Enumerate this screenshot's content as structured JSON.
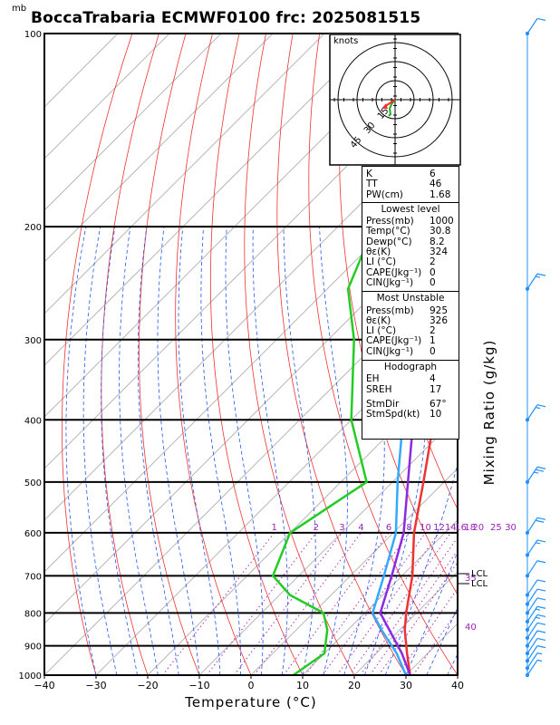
{
  "header": {
    "unit_label": "mb",
    "title": "BoccaTrabaria ECMWF0100 frc: 2025081515"
  },
  "chart_data": {
    "type": "skew-t",
    "xlabel": "Temperature (°C)",
    "ylabel_right": "Mixing Ratio (g/kg)",
    "x_ticks": [
      "−40",
      "−30",
      "−20",
      "−10",
      "0",
      "10",
      "20",
      "30",
      "40"
    ],
    "x_range": [
      -40,
      40
    ],
    "pressure_levels": [
      1000,
      900,
      800,
      700,
      600,
      500,
      400,
      300,
      200,
      100
    ],
    "pressure_labels": [
      "1000",
      "900",
      "800",
      "700",
      "600",
      "500",
      "400",
      "300",
      "200",
      "100"
    ],
    "mixing_ratio_labels": [
      "1",
      "2",
      "3",
      "4",
      "6",
      "8",
      "10",
      "12",
      "14",
      "16",
      "18",
      "20",
      "25",
      "30"
    ],
    "mixing_ratio_extra": [
      "35",
      "40"
    ],
    "lcl_labels": [
      "LCL",
      "LCL"
    ],
    "series": [
      {
        "name": "temperature",
        "color": "#ee3333",
        "points": [
          [
            1000,
            30.8
          ],
          [
            925,
            26
          ],
          [
            850,
            21
          ],
          [
            800,
            18
          ],
          [
            700,
            12
          ],
          [
            600,
            4
          ],
          [
            500,
            -4
          ],
          [
            400,
            -14
          ],
          [
            300,
            -27
          ],
          [
            250,
            -38
          ],
          [
            200,
            -43
          ],
          [
            100,
            -55
          ]
        ]
      },
      {
        "name": "dewpoint",
        "color": "#22cc22",
        "points": [
          [
            1000,
            8.2
          ],
          [
            925,
            10
          ],
          [
            850,
            6
          ],
          [
            800,
            2
          ],
          [
            750,
            -8
          ],
          [
            700,
            -15
          ],
          [
            600,
            -20
          ],
          [
            500,
            -15
          ],
          [
            400,
            -30
          ],
          [
            300,
            -45
          ],
          [
            250,
            -56
          ],
          [
            200,
            -63
          ],
          [
            100,
            -82
          ]
        ]
      },
      {
        "name": "parcel",
        "color": "#8a2be2",
        "points": [
          [
            1000,
            30.8
          ],
          [
            925,
            25
          ],
          [
            850,
            18
          ],
          [
            800,
            13
          ],
          [
            700,
            8
          ],
          [
            600,
            2
          ],
          [
            500,
            -7
          ],
          [
            400,
            -18
          ],
          [
            300,
            -34
          ],
          [
            200,
            -57
          ],
          [
            150,
            -70
          ],
          [
            120,
            -80
          ]
        ]
      },
      {
        "name": "parcel_virtual",
        "color": "#33aaff",
        "points": [
          [
            1000,
            30
          ],
          [
            925,
            24
          ],
          [
            850,
            16.5
          ],
          [
            800,
            11.5
          ],
          [
            700,
            6.5
          ],
          [
            600,
            0.5
          ],
          [
            500,
            -9
          ],
          [
            400,
            -20
          ],
          [
            300,
            -36
          ],
          [
            200,
            -59
          ],
          [
            150,
            -72
          ],
          [
            120,
            -82
          ]
        ]
      }
    ],
    "wind_barbs": [
      {
        "p": 1000,
        "spd": 5
      },
      {
        "p": 975,
        "spd": 5
      },
      {
        "p": 950,
        "spd": 10
      },
      {
        "p": 925,
        "spd": 10
      },
      {
        "p": 900,
        "spd": 10
      },
      {
        "p": 875,
        "spd": 10
      },
      {
        "p": 850,
        "spd": 15
      },
      {
        "p": 825,
        "spd": 15
      },
      {
        "p": 800,
        "spd": 10
      },
      {
        "p": 775,
        "spd": 10
      },
      {
        "p": 750,
        "spd": 10
      },
      {
        "p": 700,
        "spd": 10
      },
      {
        "p": 650,
        "spd": 15
      },
      {
        "p": 600,
        "spd": 20
      },
      {
        "p": 500,
        "spd": 25
      },
      {
        "p": 400,
        "spd": 15
      },
      {
        "p": 250,
        "spd": 15
      },
      {
        "p": 100,
        "spd": 10
      }
    ]
  },
  "hodograph": {
    "unit": "knots",
    "ring_labels": [
      "15",
      "30",
      "45"
    ]
  },
  "indices": {
    "k_label": "K",
    "k_value": "6",
    "tt_label": "TT",
    "tt_value": "46",
    "pw_label": "PW(cm)",
    "pw_value": "1.68"
  },
  "lowest_level": {
    "heading": "Lowest level",
    "rows": [
      {
        "label": "Press(mb)",
        "value": "1000"
      },
      {
        "label": "Temp(°C)",
        "value": "30.8"
      },
      {
        "label": "Dewp(°C)",
        "value": "8.2"
      },
      {
        "label": "θε(K)",
        "value": "324"
      },
      {
        "label": "LI (°C)",
        "value": "2"
      },
      {
        "label": "CAPE(Jkg⁻¹)",
        "value": "0"
      },
      {
        "label": "CIN(Jkg⁻¹)",
        "value": "0"
      }
    ]
  },
  "most_unstable": {
    "heading": "Most Unstable",
    "rows": [
      {
        "label": "Press(mb)",
        "value": "925"
      },
      {
        "label": "θε(K)",
        "value": "326"
      },
      {
        "label": "LI (°C)",
        "value": "2"
      },
      {
        "label": "CAPE(Jkg⁻¹)",
        "value": "1"
      },
      {
        "label": "CIN(Jkg⁻¹)",
        "value": "0"
      }
    ]
  },
  "hodo_indices": {
    "heading": "Hodograph",
    "rows": [
      {
        "label": "EH",
        "value": "4"
      },
      {
        "label": "SREH",
        "value": "17"
      },
      {
        "label": "StmDir",
        "value": "67°"
      },
      {
        "label": "StmSpd(kt)",
        "value": "10"
      }
    ]
  }
}
